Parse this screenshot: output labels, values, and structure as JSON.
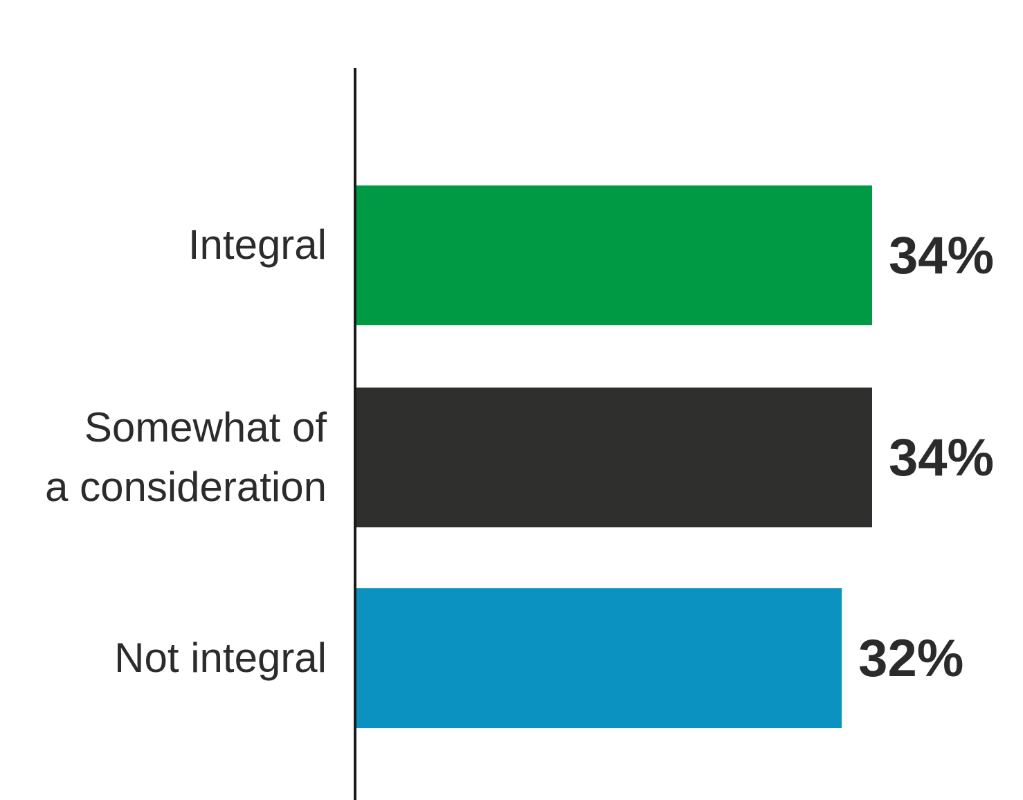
{
  "chart_data": {
    "type": "bar",
    "orientation": "horizontal",
    "title": "",
    "categories": [
      [
        "Integral"
      ],
      [
        "Somewhat of",
        "a consideration"
      ],
      [
        "Not integral"
      ]
    ],
    "values": [
      34,
      34,
      32
    ],
    "value_labels": [
      "34%",
      "34%",
      "32%"
    ],
    "colors": [
      "#009a44",
      "#2f2f2d",
      "#0b92c0"
    ],
    "axis_color": "#1a1a1a",
    "xlim": [
      0,
      34
    ],
    "grid": false,
    "legend": "none"
  }
}
